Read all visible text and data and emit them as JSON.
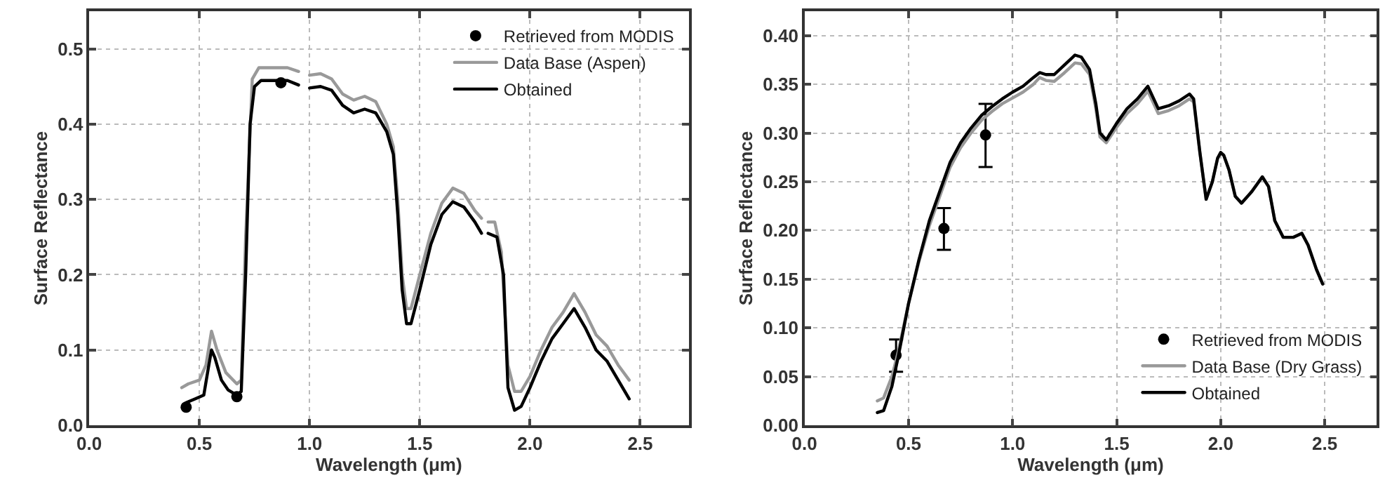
{
  "chart_data": [
    {
      "type": "line",
      "xlabel": "Wavelength (μm)",
      "ylabel": "Surface Reflectance",
      "xlim": [
        0,
        2.72
      ],
      "xticks": [
        {
          "value": 0,
          "label": "0.0"
        },
        0.5,
        {
          "value": 1,
          "label": "1.0"
        },
        1.5,
        {
          "value": 2,
          "label": "2.0"
        },
        2.5
      ],
      "ylim": [
        0,
        0.55
      ],
      "yticks": [
        {
          "value": 0,
          "label": "0.0"
        },
        0.1,
        0.2,
        0.3,
        0.4,
        0.5
      ],
      "grid": true,
      "legend": "top right",
      "series": [
        {
          "name": "Retrieved from MODIS",
          "type": "scatter",
          "marker": "circle",
          "color": "#000000",
          "x": [
            0.44,
            0.67,
            0.87
          ],
          "values": [
            0.024,
            0.038,
            0.455
          ]
        },
        {
          "name": "Data Base (Aspen)",
          "color": "#999999",
          "x": [
            0.42,
            0.45,
            0.5,
            0.53,
            0.555,
            0.58,
            0.62,
            0.67,
            0.69,
            0.71,
            0.74,
            0.77,
            0.9,
            0.95,
            0.975,
            1.0,
            1.05,
            1.1,
            1.15,
            1.2,
            1.25,
            1.3,
            1.35,
            1.38,
            1.4,
            1.42,
            1.44,
            1.46,
            1.5,
            1.55,
            1.6,
            1.65,
            1.7,
            1.75,
            1.78,
            1.795,
            1.81,
            1.84,
            1.87,
            1.9,
            1.93,
            1.96,
            2.0,
            2.05,
            2.1,
            2.15,
            2.2,
            2.25,
            2.3,
            2.35,
            2.4,
            2.45
          ],
          "values": [
            0.05,
            0.055,
            0.06,
            0.08,
            0.125,
            0.1,
            0.07,
            0.055,
            0.06,
            0.25,
            0.46,
            0.475,
            0.475,
            0.47,
            null,
            0.465,
            0.467,
            0.46,
            0.44,
            0.432,
            0.437,
            0.43,
            0.4,
            0.37,
            0.3,
            0.2,
            0.155,
            0.155,
            0.2,
            0.255,
            0.295,
            0.315,
            0.308,
            0.285,
            0.275,
            null,
            0.27,
            0.27,
            0.23,
            0.08,
            0.045,
            0.045,
            0.065,
            0.1,
            0.13,
            0.15,
            0.175,
            0.15,
            0.12,
            0.105,
            0.08,
            0.06
          ]
        },
        {
          "name": "Obtained",
          "color": "#000000",
          "x": [
            0.44,
            0.48,
            0.52,
            0.54,
            0.555,
            0.57,
            0.6,
            0.63,
            0.67,
            0.69,
            0.71,
            0.73,
            0.75,
            0.78,
            0.85,
            0.9,
            0.95,
            0.975,
            1.0,
            1.05,
            1.1,
            1.15,
            1.2,
            1.25,
            1.3,
            1.35,
            1.38,
            1.4,
            1.42,
            1.44,
            1.46,
            1.5,
            1.55,
            1.6,
            1.65,
            1.7,
            1.75,
            1.78,
            1.795,
            1.81,
            1.85,
            1.88,
            1.9,
            1.93,
            1.96,
            2.0,
            2.05,
            2.1,
            2.15,
            2.2,
            2.25,
            2.3,
            2.35,
            2.4,
            2.45
          ],
          "values": [
            0.03,
            0.035,
            0.04,
            0.075,
            0.1,
            0.09,
            0.06,
            0.047,
            0.04,
            0.045,
            0.2,
            0.4,
            0.45,
            0.458,
            0.458,
            0.458,
            0.452,
            null,
            0.448,
            0.45,
            0.445,
            0.425,
            0.415,
            0.42,
            0.415,
            0.39,
            0.36,
            0.28,
            0.18,
            0.135,
            0.135,
            0.18,
            0.24,
            0.28,
            0.297,
            0.29,
            0.27,
            0.255,
            null,
            0.255,
            0.25,
            0.2,
            0.05,
            0.02,
            0.025,
            0.05,
            0.085,
            0.115,
            0.135,
            0.155,
            0.13,
            0.1,
            0.085,
            0.06,
            0.035
          ]
        }
      ]
    },
    {
      "type": "line",
      "xlabel": "Wavelength (μm)",
      "ylabel": "Surface Reflectance",
      "xlim": [
        0,
        2.75
      ],
      "xticks": [
        {
          "value": 0,
          "label": "0.0"
        },
        0.5,
        {
          "value": 1,
          "label": "1.0"
        },
        1.5,
        {
          "value": 2,
          "label": "2.0"
        },
        2.5
      ],
      "ylim": [
        0,
        0.425
      ],
      "yticks": [
        {
          "value": 0,
          "label": "0.00"
        },
        0.05,
        {
          "value": 0.1,
          "label": "0.10"
        },
        0.15,
        {
          "value": 0.2,
          "label": "0.20"
        },
        0.25,
        {
          "value": 0.3,
          "label": "0.30"
        },
        0.35,
        {
          "value": 0.4,
          "label": "0.40"
        }
      ],
      "grid": true,
      "legend": "bottom right",
      "series": [
        {
          "name": "Retrieved from MODIS",
          "type": "scatter",
          "marker": "circle",
          "color": "#000000",
          "x": [
            0.44,
            0.67,
            0.87
          ],
          "values": [
            0.072,
            0.202,
            0.298
          ],
          "errors": [
            [
              0.055,
              0.088
            ],
            [
              0.18,
              0.223
            ],
            [
              0.265,
              0.33
            ]
          ]
        },
        {
          "name": "Data Base (Dry Grass)",
          "color": "#999999",
          "x": [
            0.35,
            0.38,
            0.42,
            0.45,
            0.5,
            0.55,
            0.6,
            0.65,
            0.7,
            0.75,
            0.8,
            0.85,
            0.9,
            0.95,
            1.0,
            1.05,
            1.1,
            1.13,
            1.16,
            1.2,
            1.25,
            1.3,
            1.33,
            1.37,
            1.4,
            1.42,
            1.45,
            1.5,
            1.55,
            1.6,
            1.65,
            1.7,
            1.75,
            1.8,
            1.85,
            1.87,
            1.9,
            1.93,
            1.96,
            1.985,
            2.0,
            2.015,
            2.04,
            2.07,
            2.1,
            2.15,
            2.2,
            2.23,
            2.26,
            2.3,
            2.35,
            2.39,
            2.42,
            2.46,
            2.49
          ],
          "values": [
            0.025,
            0.028,
            0.05,
            0.075,
            0.125,
            0.168,
            0.205,
            0.235,
            0.265,
            0.285,
            0.3,
            0.313,
            0.322,
            0.33,
            0.336,
            0.342,
            0.35,
            0.357,
            0.354,
            0.353,
            0.362,
            0.372,
            0.371,
            0.36,
            0.325,
            0.296,
            0.29,
            0.306,
            0.32,
            0.33,
            0.343,
            0.32,
            0.323,
            0.328,
            0.335,
            0.332,
            0.28,
            0.232,
            0.25,
            0.274,
            0.28,
            0.277,
            0.262,
            0.235,
            0.228,
            0.24,
            0.255,
            0.245,
            0.21,
            0.193,
            0.193,
            0.197,
            0.185,
            0.16,
            0.145
          ]
        },
        {
          "name": "Obtained",
          "color": "#000000",
          "x": [
            0.35,
            0.38,
            0.42,
            0.45,
            0.5,
            0.55,
            0.6,
            0.65,
            0.7,
            0.75,
            0.8,
            0.85,
            0.9,
            0.95,
            1.0,
            1.05,
            1.1,
            1.13,
            1.16,
            1.2,
            1.25,
            1.3,
            1.33,
            1.37,
            1.4,
            1.42,
            1.45,
            1.5,
            1.55,
            1.6,
            1.65,
            1.7,
            1.75,
            1.8,
            1.85,
            1.87,
            1.9,
            1.93,
            1.96,
            1.985,
            2.0,
            2.015,
            2.04,
            2.07,
            2.1,
            2.15,
            2.2,
            2.23,
            2.26,
            2.3,
            2.35,
            2.39,
            2.42,
            2.46,
            2.49
          ],
          "values": [
            0.013,
            0.015,
            0.04,
            0.07,
            0.125,
            0.17,
            0.21,
            0.24,
            0.27,
            0.29,
            0.305,
            0.318,
            0.327,
            0.335,
            0.342,
            0.348,
            0.357,
            0.362,
            0.36,
            0.36,
            0.37,
            0.38,
            0.378,
            0.365,
            0.33,
            0.3,
            0.293,
            0.31,
            0.325,
            0.335,
            0.348,
            0.325,
            0.328,
            0.333,
            0.34,
            0.335,
            0.28,
            0.232,
            0.25,
            0.274,
            0.28,
            0.277,
            0.262,
            0.235,
            0.228,
            0.24,
            0.255,
            0.245,
            0.21,
            0.193,
            0.193,
            0.197,
            0.185,
            0.16,
            0.145
          ]
        }
      ]
    }
  ]
}
